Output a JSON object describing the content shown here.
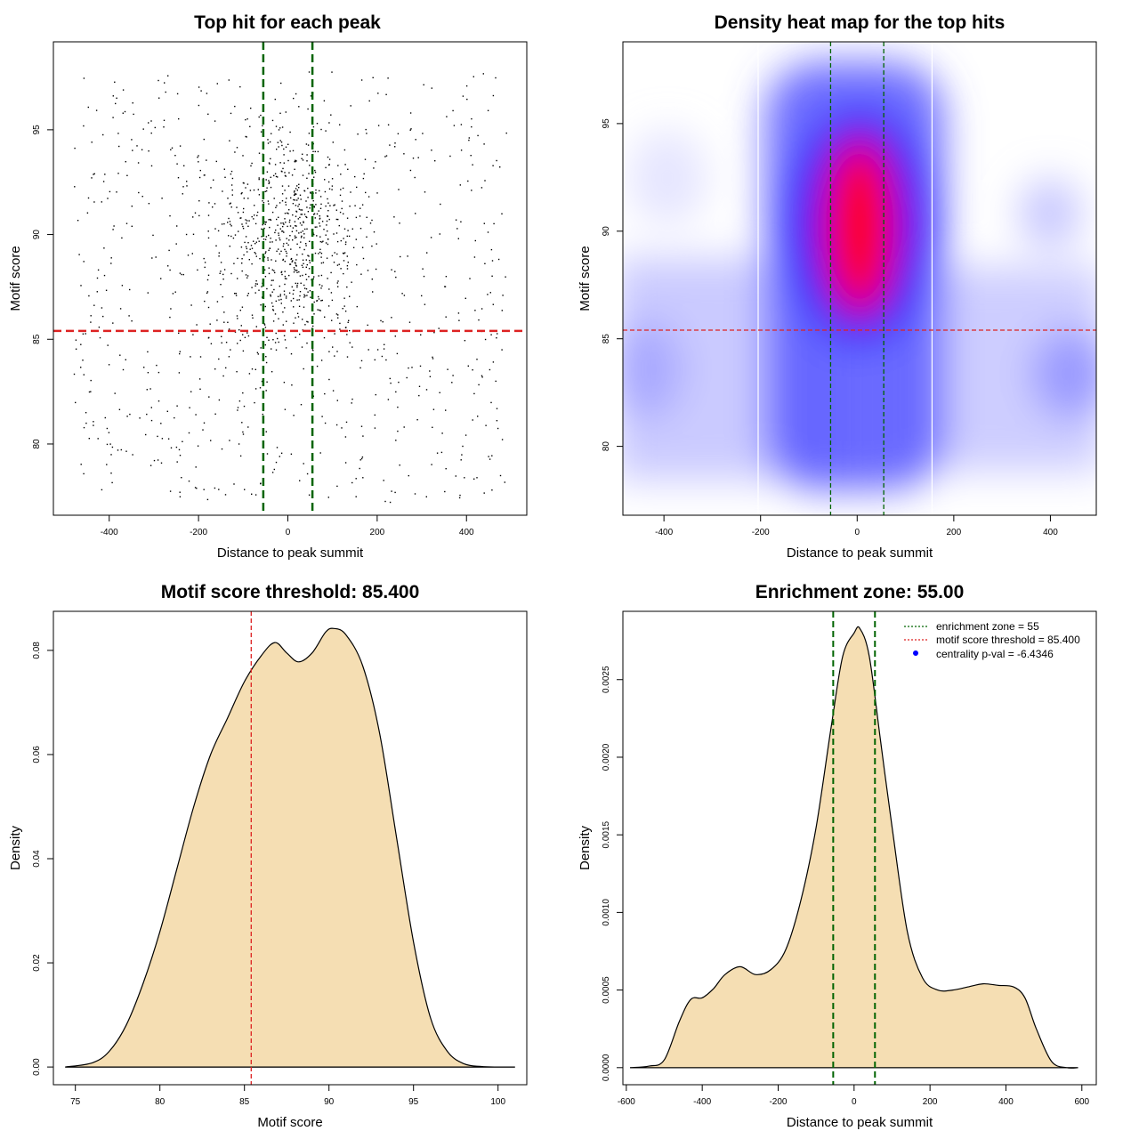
{
  "chart_data": [
    {
      "type": "scatter",
      "title": "Top hit for each peak",
      "xlabel": "Distance to peak summit",
      "ylabel": "Motif score",
      "xlim": [
        -525,
        535
      ],
      "ylim": [
        76.6,
        99.2
      ],
      "xticks": [
        "-400",
        "-200",
        "0",
        "200",
        "400"
      ],
      "yticks": [
        "80",
        "85",
        "90",
        "95"
      ],
      "hlines": [
        {
          "y": 85.4,
          "color": "#dd2222",
          "style": "dashed"
        }
      ],
      "vlines": [
        {
          "x": -55,
          "color": "#006400",
          "style": "dashed"
        },
        {
          "x": 55,
          "color": "#006400",
          "style": "dashed"
        }
      ],
      "grid": false,
      "point_count": 1400,
      "point_distribution": "dense cluster centred on distance 0 and score ~90; sparse uniform background over -480..490 and 77..98"
    },
    {
      "type": "heatmap",
      "title": "Density heat map for the top hits",
      "xlabel": "Distance to peak summit",
      "ylabel": "Motif score",
      "xlim": [
        -485,
        495
      ],
      "ylim": [
        76.8,
        98.8
      ],
      "xticks": [
        "-400",
        "-200",
        "0",
        "200",
        "400"
      ],
      "yticks": [
        "80",
        "85",
        "90",
        "95"
      ],
      "hlines": [
        {
          "y": 85.4,
          "color": "#dd2222",
          "style": "dashed"
        }
      ],
      "vlines": [
        {
          "x": -55,
          "color": "#006400",
          "style": "dashed"
        },
        {
          "x": 55,
          "color": "#006400",
          "style": "dashed"
        }
      ],
      "white_vlines": [
        {
          "x": -205
        },
        {
          "x": 155
        }
      ],
      "colorscale": [
        "#ffffff",
        "#0000ff",
        "#ff0000"
      ],
      "density_peak": {
        "x": 10,
        "y": 90.5
      },
      "grid": false
    },
    {
      "type": "area",
      "title": "Motif score threshold: 85.400",
      "xlabel": "Motif score",
      "ylabel": "Density",
      "xlim": [
        73.7,
        101.7
      ],
      "ylim": [
        -0.0034,
        0.0875
      ],
      "xticks": [
        "75",
        "80",
        "85",
        "90",
        "95",
        "100"
      ],
      "yticks": [
        "0.00",
        "0.02",
        "0.04",
        "0.06",
        "0.08"
      ],
      "fill": "#f5deb3",
      "x": [
        74.4,
        76,
        77,
        78,
        79,
        80,
        81,
        82,
        83,
        84,
        85,
        86,
        86.8,
        87.5,
        88.2,
        89,
        89.8,
        90.3,
        91,
        92,
        93,
        94,
        95,
        96,
        97,
        98,
        99,
        100,
        101
      ],
      "y": [
        0.0,
        0.0008,
        0.003,
        0.008,
        0.016,
        0.026,
        0.038,
        0.05,
        0.06,
        0.067,
        0.074,
        0.079,
        0.0815,
        0.0795,
        0.0778,
        0.0795,
        0.0835,
        0.0842,
        0.083,
        0.077,
        0.064,
        0.044,
        0.024,
        0.0095,
        0.003,
        0.0006,
        0.0001,
        0.0,
        0.0
      ],
      "vlines": [
        {
          "x": 85.4,
          "color": "#dd2222",
          "style": "dashed"
        }
      ],
      "grid": false
    },
    {
      "type": "area",
      "title": "Enrichment zone: 55.00",
      "xlabel": "Distance to peak summit",
      "ylabel": "Density",
      "xlim": [
        -609,
        638
      ],
      "ylim": [
        -0.00011,
        0.00294
      ],
      "xticks": [
        "-600",
        "-400",
        "-200",
        "0",
        "200",
        "400",
        "600"
      ],
      "yticks": [
        "0.0000",
        "0.0005",
        "0.0010",
        "0.0015",
        "0.0020",
        "0.0025"
      ],
      "fill": "#f5deb3",
      "x": [
        -590,
        -540,
        -500,
        -460,
        -430,
        -400,
        -370,
        -340,
        -300,
        -260,
        -220,
        -180,
        -140,
        -100,
        -60,
        -30,
        0,
        15,
        40,
        70,
        100,
        140,
        180,
        220,
        260,
        300,
        340,
        380,
        420,
        450,
        480,
        520,
        560,
        590
      ],
      "y": [
        0.0,
        1e-05,
        5e-05,
        0.0003,
        0.00044,
        0.00045,
        0.00051,
        0.0006,
        0.00065,
        0.0006,
        0.00063,
        0.00076,
        0.00108,
        0.00155,
        0.0022,
        0.00265,
        0.0028,
        0.00283,
        0.00265,
        0.0021,
        0.00155,
        0.00088,
        0.00058,
        0.0005,
        0.0005,
        0.00052,
        0.00054,
        0.00053,
        0.00052,
        0.00045,
        0.00025,
        4e-05,
        0.0,
        0.0
      ],
      "vlines": [
        {
          "x": -55,
          "color": "#006400",
          "style": "dashed"
        },
        {
          "x": 55,
          "color": "#006400",
          "style": "dashed"
        }
      ],
      "legend": {
        "position": "top-right",
        "entries": [
          {
            "label": "enrichment zone = 55",
            "color": "#006400",
            "style": "dotted"
          },
          {
            "label": "motif score threshold = 85.400",
            "color": "#dd2222",
            "style": "dotted"
          },
          {
            "label": "centrality p-val = -6.4346",
            "color": "#0000ff",
            "style": "point"
          }
        ]
      },
      "grid": false
    }
  ]
}
